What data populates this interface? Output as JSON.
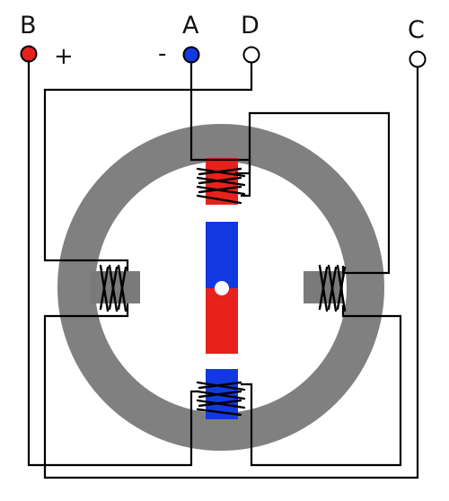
{
  "terminals": {
    "b": {
      "label": "B",
      "sign": "+",
      "color": "#e8211d"
    },
    "a": {
      "label": "A",
      "sign": "-",
      "color": "#1239e0"
    },
    "d": {
      "label": "D",
      "color": "#ffffff"
    },
    "c": {
      "label": "C",
      "color": "#ffffff"
    }
  },
  "colors": {
    "stator": "#808080",
    "pole": "#7a7a7a",
    "north": "#e8211d",
    "south": "#1239e0",
    "wire": "#000000"
  },
  "rotor": {
    "top": "south",
    "bottom": "north"
  },
  "poles": {
    "top": "north",
    "bottom": "south",
    "left": "neutral",
    "right": "neutral"
  }
}
